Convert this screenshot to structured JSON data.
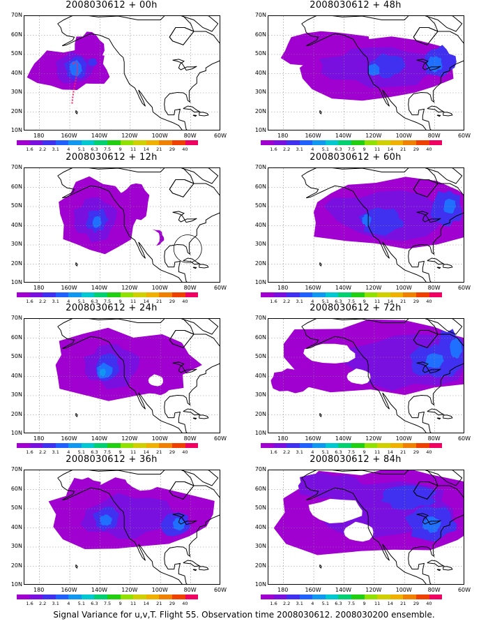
{
  "caption": "Signal Variance for u,v,T. Flight 55. Observation time 2008030612. 2008030200 ensemble.",
  "panels": [
    {
      "title": "2008030612 + 00h"
    },
    {
      "title": "2008030612 + 48h"
    },
    {
      "title": "2008030612 + 12h"
    },
    {
      "title": "2008030612 + 60h"
    },
    {
      "title": "2008030612 + 24h"
    },
    {
      "title": "2008030612 + 72h"
    },
    {
      "title": "2008030612 + 36h"
    },
    {
      "title": "2008030612 + 84h"
    }
  ],
  "y_axis_labels": [
    "70N",
    "60N",
    "50N",
    "40N",
    "30N",
    "20N",
    "10N"
  ],
  "x_axis_labels": [
    "180",
    "160W",
    "140W",
    "120W",
    "100W",
    "80W",
    "60W"
  ],
  "colorbar": {
    "labels": [
      "1.6",
      "2.2",
      "3.1",
      "4",
      "5.1",
      "6.3",
      "7.5",
      "9",
      "11",
      "14",
      "21",
      "29",
      "40"
    ],
    "colors": [
      "#a000d0",
      "#7a10e0",
      "#4030f0",
      "#2060ff",
      "#1098f0",
      "#00c8d0",
      "#00d070",
      "#20d010",
      "#90e000",
      "#d0d000",
      "#f0b000",
      "#f08000",
      "#f04000",
      "#f00060"
    ]
  },
  "map_colors": {
    "level1": "#a000d0",
    "level2": "#7a10e0",
    "level3": "#4030f0",
    "level4": "#2070ff",
    "level5": "#1098f0",
    "level6": "#00c8d0",
    "coast": "#000000",
    "grid": "#888888",
    "flight_track": "#ff2060"
  }
}
